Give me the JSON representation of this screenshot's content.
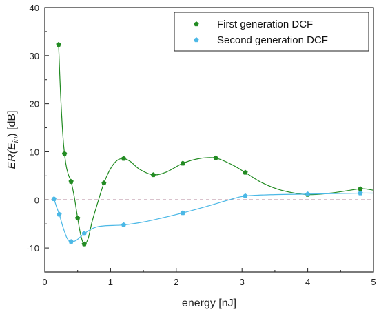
{
  "chart_data": {
    "type": "line",
    "xlabel": "energy [nJ]",
    "ylabel": {
      "main": "ER(E",
      "sub": "in",
      "suffix": ") [dB]"
    },
    "xlim": [
      0,
      5
    ],
    "ylim": [
      -15,
      40
    ],
    "xticks": [
      0,
      1,
      2,
      3,
      4,
      5
    ],
    "yticks": [
      -10,
      0,
      10,
      20,
      30,
      40
    ],
    "grid": false,
    "legend_position": "top-right",
    "reference_line": {
      "y": 0,
      "style": "dashed",
      "color": "#9b5f7a"
    },
    "series": [
      {
        "name": "First generation DCF",
        "color": "#228b22",
        "marker": "pentagon",
        "points": [
          [
            0.21,
            32.3
          ],
          [
            0.3,
            9.6
          ],
          [
            0.4,
            3.8
          ],
          [
            0.5,
            -3.8
          ],
          [
            0.6,
            -9.2
          ],
          [
            0.9,
            3.5
          ],
          [
            1.2,
            8.6
          ],
          [
            1.65,
            5.2
          ],
          [
            2.1,
            7.6
          ],
          [
            2.6,
            8.7
          ],
          [
            3.05,
            5.7
          ],
          [
            4.0,
            1.1
          ],
          [
            4.8,
            2.3
          ]
        ],
        "curve": [
          [
            0.21,
            32.3
          ],
          [
            0.24,
            22.0
          ],
          [
            0.28,
            12.5
          ],
          [
            0.32,
            7.5
          ],
          [
            0.36,
            5.2
          ],
          [
            0.4,
            3.8
          ],
          [
            0.45,
            0.5
          ],
          [
            0.5,
            -3.8
          ],
          [
            0.55,
            -7.5
          ],
          [
            0.6,
            -9.2
          ],
          [
            0.66,
            -8.0
          ],
          [
            0.72,
            -4.5
          ],
          [
            0.8,
            -0.8
          ],
          [
            0.9,
            3.5
          ],
          [
            1.0,
            6.5
          ],
          [
            1.1,
            8.2
          ],
          [
            1.2,
            8.6
          ],
          [
            1.3,
            8.0
          ],
          [
            1.45,
            6.3
          ],
          [
            1.65,
            5.2
          ],
          [
            1.85,
            5.8
          ],
          [
            2.1,
            7.6
          ],
          [
            2.35,
            8.6
          ],
          [
            2.6,
            8.7
          ],
          [
            2.85,
            7.3
          ],
          [
            3.05,
            5.7
          ],
          [
            3.3,
            3.6
          ],
          [
            3.6,
            2.0
          ],
          [
            4.0,
            1.1
          ],
          [
            4.4,
            1.5
          ],
          [
            4.8,
            2.3
          ],
          [
            5.0,
            2.0
          ]
        ]
      },
      {
        "name": "Second generation DCF",
        "color": "#4bb8e6",
        "marker": "pentagon",
        "points": [
          [
            0.14,
            0.2
          ],
          [
            0.22,
            -3.0
          ],
          [
            0.4,
            -8.7
          ],
          [
            0.6,
            -7.0
          ],
          [
            1.2,
            -5.2
          ],
          [
            2.1,
            -2.7
          ],
          [
            3.05,
            0.8
          ],
          [
            4.0,
            1.2
          ],
          [
            4.8,
            1.4
          ]
        ],
        "curve": [
          [
            0.14,
            0.2
          ],
          [
            0.18,
            -1.5
          ],
          [
            0.22,
            -3.0
          ],
          [
            0.28,
            -5.8
          ],
          [
            0.34,
            -8.0
          ],
          [
            0.4,
            -8.7
          ],
          [
            0.48,
            -8.4
          ],
          [
            0.6,
            -7.0
          ],
          [
            0.75,
            -5.8
          ],
          [
            0.9,
            -5.4
          ],
          [
            1.2,
            -5.2
          ],
          [
            1.5,
            -4.6
          ],
          [
            1.8,
            -3.7
          ],
          [
            2.1,
            -2.7
          ],
          [
            2.5,
            -1.2
          ],
          [
            2.8,
            0.0
          ],
          [
            3.05,
            0.8
          ],
          [
            3.5,
            1.1
          ],
          [
            4.0,
            1.2
          ],
          [
            4.4,
            1.3
          ],
          [
            4.8,
            1.4
          ],
          [
            5.0,
            1.4
          ]
        ]
      }
    ]
  }
}
